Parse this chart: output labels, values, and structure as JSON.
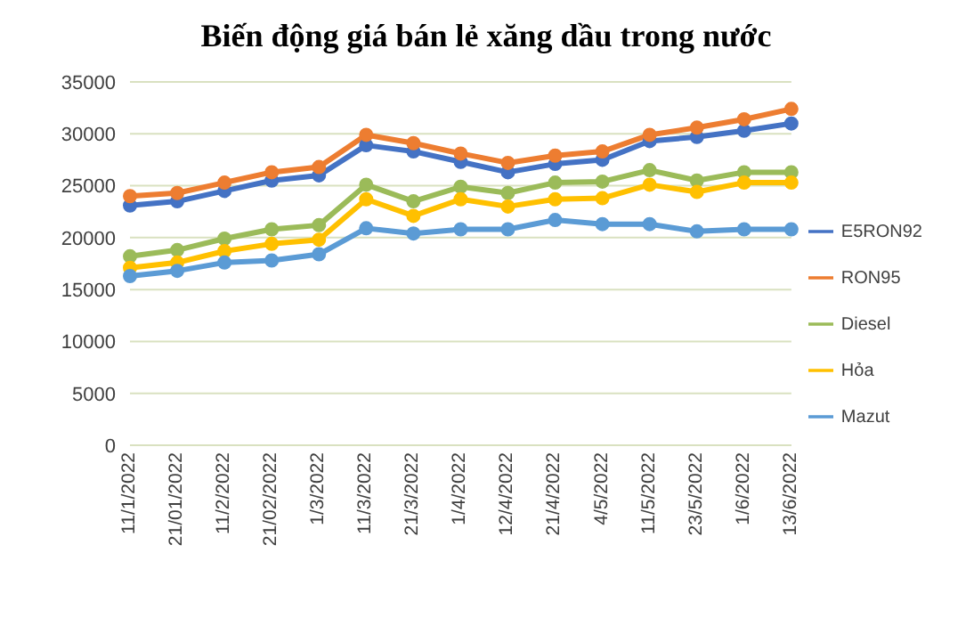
{
  "chart_data": {
    "type": "line",
    "title": "Biến động giá bán lẻ xăng dầu trong nước",
    "categories": [
      "11/1/2022",
      "21/01/2022",
      "11/2/2022",
      "21/02/2022",
      "1/3/2022",
      "11/3/2022",
      "21/3/2022",
      "1/4/2022",
      "12/4/2022",
      "21/4/2022",
      "4/5/2022",
      "11/5/2022",
      "23/5/2022",
      "1/6/2022",
      "13/6/2022"
    ],
    "series": [
      {
        "name": "E5RON92",
        "color": "#4472c4",
        "values": [
          23100,
          23500,
          24500,
          25500,
          26000,
          28900,
          28300,
          27300,
          26300,
          27100,
          27500,
          29300,
          29700,
          30300,
          31000
        ]
      },
      {
        "name": "RON95",
        "color": "#ed7d31",
        "values": [
          24000,
          24300,
          25300,
          26300,
          26800,
          29900,
          29100,
          28100,
          27200,
          27900,
          28300,
          29900,
          30600,
          31400,
          32400
        ]
      },
      {
        "name": "Diesel",
        "color": "#9bbb59",
        "values": [
          18200,
          18800,
          19900,
          20800,
          21200,
          25100,
          23500,
          24900,
          24300,
          25300,
          25400,
          26500,
          25500,
          26300,
          26300
        ]
      },
      {
        "name": "Hỏa",
        "color": "#ffc000",
        "values": [
          17100,
          17600,
          18700,
          19400,
          19800,
          23700,
          22100,
          23700,
          23000,
          23700,
          23800,
          25100,
          24400,
          25300,
          25300
        ]
      },
      {
        "name": "Mazut",
        "color": "#5b9bd5",
        "values": [
          16300,
          16800,
          17600,
          17800,
          18400,
          20900,
          20400,
          20800,
          20800,
          21700,
          21300,
          21300,
          20600,
          20800,
          20800
        ]
      }
    ],
    "ylim": [
      0,
      35000
    ],
    "yticks": [
      0,
      5000,
      10000,
      15000,
      20000,
      25000,
      30000,
      35000
    ],
    "grid": "y",
    "legend": "right",
    "marker": "circle"
  }
}
